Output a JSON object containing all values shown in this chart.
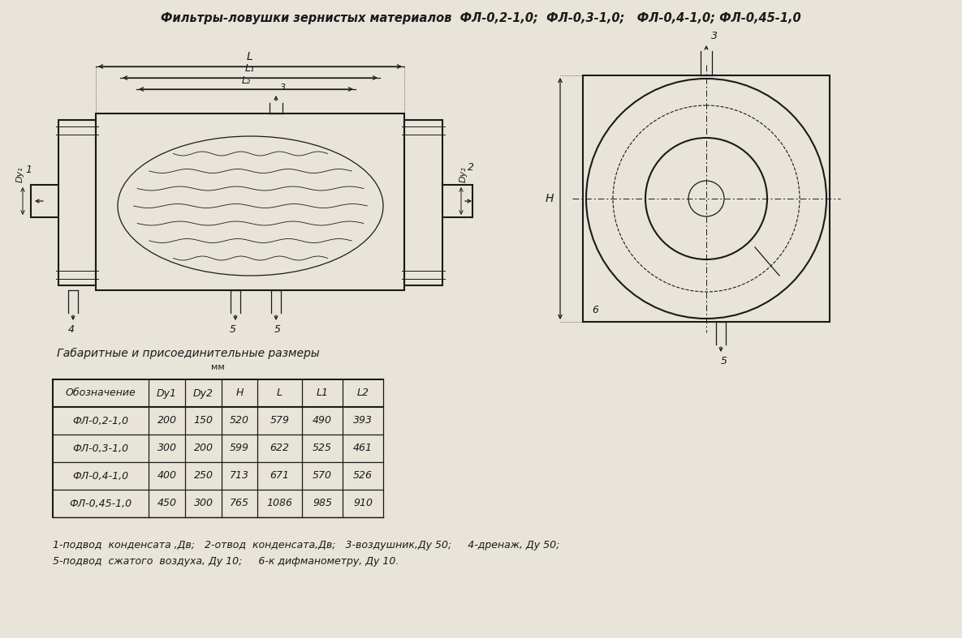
{
  "title": "Фильтры-ловушки зернистых материалов  ФЛ-0,2-1,0;  ФЛ-0,3-1,0;   ФЛ-0,4-1,0; ФЛ-0,45-1,0",
  "bg_color": "#e8e4da",
  "line_color": "#1a1a1a",
  "table_title": "Габаритные и присоединительные размеры",
  "table_subtitle": "мм",
  "table_headers": [
    "Обозначение",
    "Dy1",
    "Dy2",
    "H",
    "L",
    "L1",
    "L2"
  ],
  "table_rows": [
    [
      "ФЛ-0,2-1,0",
      "200",
      "150",
      "520",
      "579",
      "490",
      "393"
    ],
    [
      "ФЛ-0,3-1,0",
      "300",
      "200",
      "599",
      "622",
      "525",
      "461"
    ],
    [
      "ФЛ-0,4-1,0",
      "400",
      "250",
      "713",
      "671",
      "570",
      "526"
    ],
    [
      "ФЛ-0,45-1,0",
      "450",
      "300",
      "765",
      "1086",
      "985",
      "910"
    ]
  ],
  "footnote_line1": "1-подвод  конденсата ,Дв;   2-отвод  конденсата,Дв;   3-воздушник,Ду 50;     4-дренаж, Ду 50;",
  "footnote_line2": "5-подвод  сжатого  воздуха, Ду 10;     6-к дифманометру, Ду 10."
}
